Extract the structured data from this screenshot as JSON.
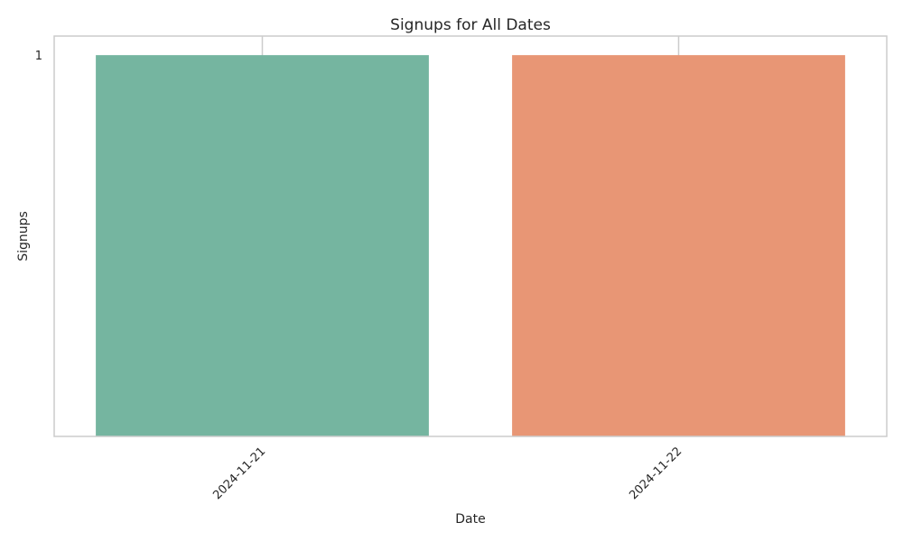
{
  "chart_data": {
    "type": "bar",
    "title": "Signups for All Dates",
    "xlabel": "Date",
    "ylabel": "Signups",
    "categories": [
      "2024-11-21",
      "2024-11-22"
    ],
    "values": [
      1,
      1
    ],
    "colors": [
      "#75b5a0",
      "#e89675"
    ],
    "yticks": [
      1
    ],
    "ylim": [
      0,
      1.05
    ],
    "grid": "vertical",
    "grid_color": "#cccccc",
    "frame_color": "#cccccc",
    "legend": "none"
  }
}
